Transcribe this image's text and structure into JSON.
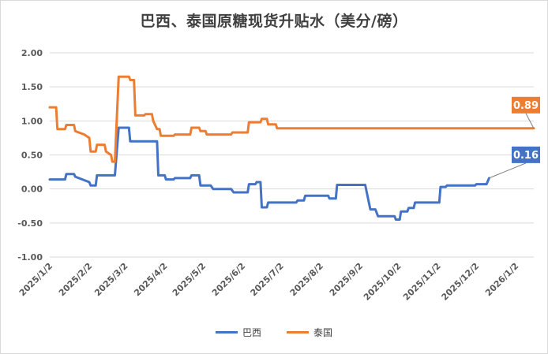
{
  "chart_data": {
    "type": "line",
    "title": "巴西、泰国原糖现货升贴水（美分/磅）",
    "xlabel": "",
    "ylabel": "",
    "ylim": [
      -1.0,
      2.0
    ],
    "yticks": [
      "2.00",
      "1.50",
      "1.00",
      "0.50",
      "0.00",
      "-0.50",
      "-1.00"
    ],
    "xlim": [
      "2025-01-02",
      "2026-01-16"
    ],
    "xticks": [
      "2025/1/2",
      "2025/2/2",
      "2025/3/2",
      "2025/4/2",
      "2025/5/2",
      "2025/6/2",
      "2025/7/2",
      "2025/8/2",
      "2025/9/2",
      "2025/10/2",
      "2025/11/2",
      "2025/12/2",
      "2026/1/2"
    ],
    "grid": "horizontal",
    "legend_position": "bottom",
    "series": [
      {
        "name": "巴西",
        "color": "#4472C4",
        "end_label": "0.16",
        "points": [
          [
            "2025-01-02",
            0.14
          ],
          [
            "2025-01-14",
            0.14
          ],
          [
            "2025-01-15",
            0.22
          ],
          [
            "2025-01-21",
            0.22
          ],
          [
            "2025-01-22",
            0.18
          ],
          [
            "2025-02-02",
            0.1
          ],
          [
            "2025-02-03",
            0.05
          ],
          [
            "2025-02-07",
            0.05
          ],
          [
            "2025-02-08",
            0.2
          ],
          [
            "2025-02-22",
            0.2
          ],
          [
            "2025-02-25",
            0.9
          ],
          [
            "2025-03-05",
            0.9
          ],
          [
            "2025-03-06",
            0.7
          ],
          [
            "2025-03-27",
            0.7
          ],
          [
            "2025-03-28",
            0.2
          ],
          [
            "2025-04-02",
            0.2
          ],
          [
            "2025-04-03",
            0.14
          ],
          [
            "2025-04-09",
            0.14
          ],
          [
            "2025-04-10",
            0.16
          ],
          [
            "2025-04-22",
            0.16
          ],
          [
            "2025-04-23",
            0.2
          ],
          [
            "2025-04-29",
            0.2
          ],
          [
            "2025-04-30",
            0.05
          ],
          [
            "2025-05-08",
            0.05
          ],
          [
            "2025-05-10",
            0.0
          ],
          [
            "2025-05-24",
            0.0
          ],
          [
            "2025-05-26",
            -0.05
          ],
          [
            "2025-06-06",
            -0.05
          ],
          [
            "2025-06-07",
            0.07
          ],
          [
            "2025-06-12",
            0.07
          ],
          [
            "2025-06-13",
            0.1
          ],
          [
            "2025-06-16",
            0.1
          ],
          [
            "2025-06-17",
            -0.27
          ],
          [
            "2025-06-21",
            -0.27
          ],
          [
            "2025-06-22",
            -0.2
          ],
          [
            "2025-07-14",
            -0.2
          ],
          [
            "2025-07-15",
            -0.17
          ],
          [
            "2025-07-20",
            -0.17
          ],
          [
            "2025-07-21",
            -0.1
          ],
          [
            "2025-08-08",
            -0.1
          ],
          [
            "2025-08-09",
            -0.14
          ],
          [
            "2025-08-14",
            -0.14
          ],
          [
            "2025-08-15",
            0.06
          ],
          [
            "2025-09-06",
            0.06
          ],
          [
            "2025-09-10",
            -0.3
          ],
          [
            "2025-09-14",
            -0.3
          ],
          [
            "2025-09-16",
            -0.4
          ],
          [
            "2025-09-29",
            -0.4
          ],
          [
            "2025-09-30",
            -0.45
          ],
          [
            "2025-10-03",
            -0.45
          ],
          [
            "2025-10-04",
            -0.33
          ],
          [
            "2025-10-09",
            -0.33
          ],
          [
            "2025-10-10",
            -0.28
          ],
          [
            "2025-10-14",
            -0.28
          ],
          [
            "2025-10-15",
            -0.2
          ],
          [
            "2025-11-03",
            -0.2
          ],
          [
            "2025-11-04",
            0.03
          ],
          [
            "2025-11-08",
            0.03
          ],
          [
            "2025-11-09",
            0.05
          ],
          [
            "2025-12-01",
            0.05
          ],
          [
            "2025-12-02",
            0.07
          ],
          [
            "2025-12-10",
            0.07
          ],
          [
            "2025-12-12",
            0.16
          ]
        ]
      },
      {
        "name": "泰国",
        "color": "#ED7D31",
        "end_label": "0.89",
        "points": [
          [
            "2025-01-02",
            1.2
          ],
          [
            "2025-01-07",
            1.2
          ],
          [
            "2025-01-08",
            0.88
          ],
          [
            "2025-01-14",
            0.88
          ],
          [
            "2025-01-15",
            0.94
          ],
          [
            "2025-01-21",
            0.94
          ],
          [
            "2025-01-22",
            0.85
          ],
          [
            "2025-01-29",
            0.8
          ],
          [
            "2025-02-02",
            0.75
          ],
          [
            "2025-02-03",
            0.55
          ],
          [
            "2025-02-07",
            0.55
          ],
          [
            "2025-02-08",
            0.65
          ],
          [
            "2025-02-14",
            0.65
          ],
          [
            "2025-02-15",
            0.55
          ],
          [
            "2025-02-19",
            0.5
          ],
          [
            "2025-02-20",
            0.4
          ],
          [
            "2025-02-22",
            0.4
          ],
          [
            "2025-02-25",
            1.65
          ],
          [
            "2025-03-05",
            1.65
          ],
          [
            "2025-03-06",
            1.6
          ],
          [
            "2025-03-09",
            1.6
          ],
          [
            "2025-03-10",
            1.08
          ],
          [
            "2025-03-17",
            1.08
          ],
          [
            "2025-03-18",
            1.1
          ],
          [
            "2025-03-23",
            1.1
          ],
          [
            "2025-03-24",
            1.0
          ],
          [
            "2025-03-27",
            0.88
          ],
          [
            "2025-03-29",
            0.88
          ],
          [
            "2025-03-30",
            0.78
          ],
          [
            "2025-04-09",
            0.78
          ],
          [
            "2025-04-10",
            0.8
          ],
          [
            "2025-04-22",
            0.8
          ],
          [
            "2025-04-23",
            0.9
          ],
          [
            "2025-04-29",
            0.9
          ],
          [
            "2025-04-30",
            0.85
          ],
          [
            "2025-05-04",
            0.85
          ],
          [
            "2025-05-05",
            0.8
          ],
          [
            "2025-05-24",
            0.8
          ],
          [
            "2025-05-25",
            0.83
          ],
          [
            "2025-06-06",
            0.83
          ],
          [
            "2025-06-07",
            0.98
          ],
          [
            "2025-06-16",
            0.98
          ],
          [
            "2025-06-17",
            1.03
          ],
          [
            "2025-06-21",
            1.03
          ],
          [
            "2025-06-22",
            0.95
          ],
          [
            "2025-06-28",
            0.95
          ],
          [
            "2025-06-29",
            0.89
          ],
          [
            "2026-01-16",
            0.89
          ]
        ]
      }
    ]
  }
}
